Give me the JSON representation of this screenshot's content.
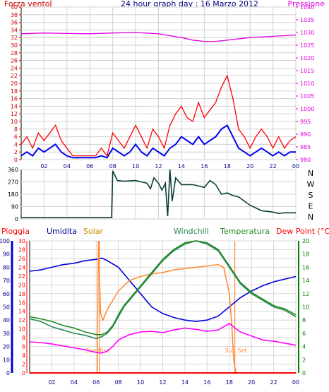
{
  "colors": {
    "pressione": "#e000e0",
    "forza_line": "#ff0000",
    "forza_avg": "#0000ee",
    "direction": "#0a3d3a",
    "umidita": "#0000dd",
    "solar": "#ff8c3a",
    "windchill": "#2e8b57",
    "temperatura": "#228b22",
    "dewpoint": "#ff00ff",
    "pioggia": "#ff0000",
    "label_forza": "#cc0000",
    "label_navy": "#000080",
    "label_pioggia": "#ff0000",
    "label_umidita": "#000099",
    "label_solar": "#cc8800",
    "label_windchill": "#2e8b57",
    "label_temperatura": "#228b22",
    "label_dew": "#ff0000",
    "axis_umidita": "#0000cc",
    "axis_temperatura": "#008000"
  },
  "chart_data": [
    {
      "id": "wind-pressure",
      "type": "line",
      "title": "24 hour graph day : 16 Marzo 2012",
      "ylabel_left": "Forza vento[",
      "ylabel_right": "Pressione",
      "ylim_left": [
        0,
        40
      ],
      "ylim_right": [
        980,
        1040
      ],
      "xlim": [
        0,
        24
      ],
      "left_ticks": [
        "0",
        "2",
        "4",
        "6",
        "8",
        "10",
        "12",
        "14",
        "16",
        "18",
        "20",
        "22",
        "24",
        "26",
        "28",
        "30",
        "32",
        "34",
        "36",
        "38",
        "40"
      ],
      "right_ticks": [
        "980",
        "985",
        "990",
        "995",
        "1000",
        "1005",
        "1010",
        "1015",
        "1020",
        "1025",
        "1030",
        "1035",
        "1040"
      ],
      "x_ticks": [
        "02",
        "04",
        "06",
        "08",
        "10",
        "12",
        "14",
        "16",
        "18",
        "20",
        "22",
        "00"
      ],
      "series": [
        {
          "key": "pressione",
          "axis": "right",
          "x": [
            0,
            2,
            4,
            6,
            8,
            10,
            12,
            14,
            15,
            16,
            17,
            18,
            20,
            22,
            24
          ],
          "y": [
            1029.5,
            1029.8,
            1029.6,
            1029.5,
            1029.8,
            1030,
            1029.5,
            1028,
            1027,
            1026.5,
            1026.5,
            1027,
            1028,
            1028.5,
            1029
          ]
        },
        {
          "key": "forza_avg",
          "axis": "left",
          "x": [
            0,
            0.5,
            1,
            1.5,
            2,
            2.5,
            3,
            3.5,
            4,
            4.5,
            5,
            5.5,
            6,
            6.5,
            7,
            7.5,
            8,
            8.5,
            9,
            9.5,
            10,
            10.5,
            11,
            11.5,
            12,
            12.5,
            13,
            13.5,
            14,
            14.5,
            15,
            15.5,
            16,
            16.5,
            17,
            17.5,
            18,
            18.5,
            19,
            19.5,
            20,
            20.5,
            21,
            21.5,
            22,
            22.5,
            23,
            23.5,
            24
          ],
          "y": [
            1,
            2,
            1,
            3,
            2,
            3,
            4,
            2,
            1,
            0.5,
            0.5,
            0.5,
            0.5,
            0.5,
            1,
            0.5,
            3,
            2,
            1,
            2,
            4,
            2,
            1,
            3,
            2,
            1,
            3,
            4,
            6,
            5,
            4,
            6,
            4,
            5,
            6,
            8,
            9,
            6,
            3,
            2,
            1,
            2,
            3,
            2,
            1,
            2,
            1,
            2,
            2
          ]
        },
        {
          "key": "forza_line",
          "axis": "left",
          "x": [
            0,
            0.5,
            1,
            1.5,
            2,
            2.5,
            3,
            3.5,
            4,
            4.5,
            5,
            5.5,
            6,
            6.5,
            7,
            7.5,
            8,
            8.5,
            9,
            9.5,
            10,
            10.5,
            11,
            11.5,
            12,
            12.5,
            13,
            13.5,
            14,
            14.5,
            15,
            15.5,
            16,
            16.5,
            17,
            17.5,
            18,
            18.5,
            19,
            19.5,
            20,
            20.5,
            21,
            21.5,
            22,
            22.5,
            23,
            23.5,
            24
          ],
          "y": [
            4,
            6,
            3,
            7,
            5,
            7,
            9,
            5,
            3,
            1,
            1,
            1,
            1,
            1,
            3,
            1,
            7,
            5,
            3,
            6,
            9,
            6,
            3,
            8,
            6,
            3,
            9,
            12,
            14,
            11,
            10,
            15,
            11,
            13,
            15,
            19,
            22,
            16,
            8,
            6,
            3,
            6,
            8,
            6,
            3,
            6,
            3,
            5,
            6
          ]
        }
      ]
    },
    {
      "id": "wind-direction",
      "type": "line",
      "ylim": [
        0,
        360
      ],
      "xlim": [
        0,
        24
      ],
      "left_ticks": [
        "0",
        "90",
        "180",
        "270",
        "360"
      ],
      "compass_labels": [
        "N",
        "W",
        "S",
        "E",
        "N"
      ],
      "series": [
        {
          "key": "direction",
          "x": [
            0,
            2,
            4,
            6,
            7.9,
            8.0,
            8.4,
            9,
            10,
            11,
            11.3,
            11.6,
            12,
            12.3,
            12.6,
            12.8,
            13,
            13.2,
            13.5,
            14,
            15,
            16,
            16.5,
            17,
            17.5,
            18,
            18.5,
            19,
            20,
            20.5,
            21,
            22,
            22.5,
            23,
            24
          ],
          "y": [
            10,
            10,
            10,
            10,
            10,
            350,
            280,
            275,
            280,
            260,
            220,
            300,
            260,
            210,
            260,
            20,
            360,
            130,
            300,
            250,
            250,
            230,
            280,
            250,
            180,
            190,
            170,
            160,
            100,
            80,
            60,
            50,
            40,
            45,
            45
          ]
        }
      ]
    },
    {
      "id": "weather-multi",
      "type": "line",
      "legend": [
        "Pioggia",
        "Umidita",
        "Solar",
        "Windchill",
        "Temperatura",
        "Dew Point (°C)"
      ],
      "ylim_humidity": [
        0,
        100
      ],
      "ylim_rain": [
        0,
        30
      ],
      "ylim_temperature": [
        0,
        20
      ],
      "xlim": [
        0,
        24
      ],
      "humidity_ticks": [
        "0",
        "10",
        "20",
        "30",
        "40",
        "50",
        "60",
        "70",
        "80",
        "90",
        "100"
      ],
      "rain_ticks": [
        "0",
        "2",
        "4",
        "6",
        "8",
        "10",
        "12",
        "14",
        "16",
        "18",
        "20",
        "22",
        "24",
        "26",
        "28",
        "30"
      ],
      "temp_ticks": [
        "0",
        "2",
        "4",
        "6",
        "8",
        "10",
        "12",
        "14",
        "16",
        "18",
        "20"
      ],
      "x_ticks": [
        "02",
        "04",
        "06",
        "08",
        "10",
        "12",
        "14",
        "16",
        "18",
        "20",
        "22",
        "00"
      ],
      "annotations": [
        {
          "text": "Sun Rise",
          "x": 6.3
        },
        {
          "text": "Sun Set",
          "x": 18.5
        }
      ],
      "series": [
        {
          "key": "umidita",
          "axis": "humidity",
          "x": [
            0,
            1,
            2,
            3,
            4,
            5,
            6,
            6.5,
            7,
            8,
            9,
            10,
            11,
            12,
            13,
            14,
            15,
            16,
            17,
            18,
            19,
            20,
            21,
            22,
            23,
            24
          ],
          "y": [
            77,
            78,
            80,
            82,
            83,
            85,
            86,
            87,
            85,
            80,
            70,
            60,
            50,
            45,
            42,
            40,
            39,
            40,
            43,
            50,
            57,
            62,
            66,
            69,
            71,
            73
          ]
        },
        {
          "key": "solar",
          "axis": "humidity",
          "x": [
            0,
            6.1,
            6.2,
            6.4,
            6.6,
            7,
            7.5,
            8,
            9,
            10,
            11,
            12,
            13,
            14,
            15,
            16,
            17,
            17.5,
            18,
            18.2,
            18.4,
            18.6,
            24
          ],
          "y": [
            0,
            0,
            100,
            45,
            40,
            48,
            55,
            62,
            70,
            73,
            75,
            76,
            78,
            79,
            80,
            81,
            82,
            80,
            60,
            40,
            10,
            0,
            0
          ]
        },
        {
          "key": "windchill",
          "axis": "temperature",
          "x": [
            0,
            1,
            2,
            3,
            4,
            5,
            6,
            6.5,
            7,
            7.5,
            8,
            8.5,
            9,
            10,
            11,
            12,
            13,
            14,
            15,
            16,
            17,
            18,
            19,
            20,
            21,
            22,
            23,
            24
          ],
          "y": [
            8.2,
            7.8,
            7,
            6.5,
            6,
            5.7,
            5.2,
            5.5,
            6,
            7,
            8.5,
            10,
            11,
            13,
            15,
            17,
            18.5,
            19.5,
            20,
            19.5,
            18.5,
            16,
            13.5,
            12,
            11,
            10,
            9.5,
            8.5
          ]
        },
        {
          "key": "temperatura",
          "axis": "temperature",
          "x": [
            0,
            1,
            2,
            3,
            4,
            5,
            6,
            6.5,
            7,
            7.5,
            8,
            8.5,
            9,
            10,
            11,
            12,
            13,
            14,
            15,
            16,
            17,
            18,
            19,
            20,
            21,
            22,
            23,
            24
          ],
          "y": [
            8.5,
            8.2,
            7.8,
            7.2,
            6.8,
            6.2,
            5.8,
            5.8,
            6.2,
            7.2,
            8.8,
            10.2,
            11.2,
            13.2,
            15.2,
            17.2,
            18.7,
            19.7,
            20,
            19.7,
            18.7,
            16.2,
            13.7,
            12.2,
            11.2,
            10.2,
            9.7,
            8.8
          ]
        },
        {
          "key": "dewpoint",
          "axis": "temperature",
          "x": [
            0,
            1,
            2,
            3,
            4,
            5,
            6,
            6.5,
            7,
            7.5,
            8,
            9,
            10,
            11,
            12,
            13,
            14,
            15,
            16,
            17,
            17.5,
            18,
            18.5,
            19,
            20,
            21,
            22,
            23,
            24
          ],
          "y": [
            4.7,
            4.6,
            4.4,
            4.1,
            3.8,
            3.5,
            3.1,
            3.0,
            3.3,
            4,
            5,
            5.8,
            6.2,
            6.3,
            6.1,
            6.5,
            6.8,
            6.6,
            6.3,
            6.5,
            7,
            7.5,
            6.8,
            6.2,
            5.6,
            5,
            4.8,
            4.5,
            4.2
          ]
        },
        {
          "key": "pioggia",
          "axis": "rain",
          "x": [
            0,
            24
          ],
          "y": [
            0,
            0
          ]
        }
      ]
    }
  ]
}
